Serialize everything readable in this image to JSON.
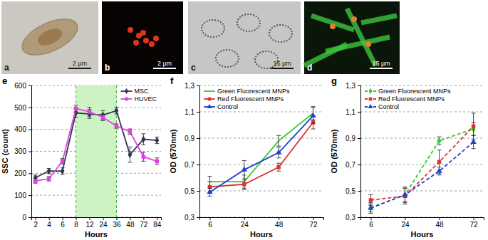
{
  "panels": [
    {
      "label": "a",
      "scale_bar": "2 µm"
    },
    {
      "label": "b",
      "scale_bar": "2 µm"
    },
    {
      "label": "c",
      "scale_bar": "15 µm"
    },
    {
      "label": "d",
      "scale_bar": "15 µm"
    }
  ],
  "chart_data": [
    {
      "label": "e",
      "type": "line",
      "x_label": "Hours",
      "y_label": "SSC (count)",
      "categories": [
        "2",
        "4",
        "6",
        "8",
        "12",
        "24",
        "36",
        "48",
        "72",
        "84"
      ],
      "ylim": [
        0,
        600
      ],
      "yticks": [
        0,
        100,
        200,
        300,
        400,
        500,
        600
      ],
      "grid": true,
      "legend": "upper right",
      "band": [
        "8",
        "36"
      ],
      "series": [
        {
          "name": "MSC",
          "color": "#2f3b55",
          "marker": "diamond",
          "line_style": "solid",
          "values": [
            180,
            210,
            210,
            475,
            470,
            465,
            485,
            285,
            355,
            350
          ],
          "errors": [
            12,
            12,
            15,
            20,
            20,
            20,
            15,
            35,
            25,
            15
          ]
        },
        {
          "name": "HUVEC",
          "color": "#e040e0",
          "marker": "square",
          "line_style": "solid",
          "values": [
            165,
            175,
            255,
            495,
            480,
            455,
            415,
            390,
            275,
            255
          ],
          "errors": [
            10,
            10,
            12,
            15,
            20,
            15,
            10,
            12,
            20,
            15
          ]
        }
      ]
    },
    {
      "label": "f",
      "type": "line",
      "x_label": "Hours",
      "y_label": "OD (570nm)",
      "categories": [
        "6",
        "24",
        "48",
        "72"
      ],
      "ylim": [
        0.3,
        1.3
      ],
      "yticks": [
        {
          "value": 0.3,
          "label": "0,3"
        },
        {
          "value": 0.5,
          "label": "0,5"
        },
        {
          "value": 0.7,
          "label": "0,7"
        },
        {
          "value": 0.9,
          "label": "0,9"
        },
        {
          "value": 1.1,
          "label": "1,1"
        },
        {
          "value": 1.3,
          "label": "1,3"
        }
      ],
      "grid": true,
      "legend": "upper left",
      "series": [
        {
          "name": "Green Fluorescent MNPs",
          "color": "#33cc33",
          "marker": "none",
          "line_style": "solid",
          "values": [
            0.57,
            0.57,
            0.88,
            1.09
          ],
          "errors": [
            0.04,
            0.05,
            0.04,
            0.05
          ]
        },
        {
          "name": "Red Fluorescent MNPs",
          "color": "#e03030",
          "marker": "square",
          "line_style": "solid",
          "values": [
            0.53,
            0.55,
            0.68,
            1.02
          ],
          "errors": [
            0.04,
            0.04,
            0.03,
            0.05
          ]
        },
        {
          "name": "Control",
          "color": "#2040d0",
          "marker": "triangle",
          "line_style": "solid",
          "values": [
            0.49,
            0.66,
            0.79,
            1.07
          ],
          "errors": [
            0.03,
            0.07,
            0.04,
            0.06
          ]
        }
      ]
    },
    {
      "label": "g",
      "type": "line",
      "x_label": "Hours",
      "y_label": "OD (570nm)",
      "categories": [
        "6",
        "24",
        "48",
        "72"
      ],
      "ylim": [
        0.3,
        1.3
      ],
      "yticks": [
        {
          "value": 0.3,
          "label": "0,3"
        },
        {
          "value": 0.5,
          "label": "0,5"
        },
        {
          "value": 0.7,
          "label": "0,7"
        },
        {
          "value": 0.9,
          "label": "0,9"
        },
        {
          "value": 1.1,
          "label": "1,1"
        },
        {
          "value": 1.3,
          "label": "1,3"
        }
      ],
      "grid": true,
      "legend": "upper left",
      "series": [
        {
          "name": "Green Fluorescent MNPs",
          "color": "#33cc33",
          "marker": "diamond",
          "line_style": "dashed",
          "values": [
            0.37,
            0.47,
            0.88,
            0.97
          ],
          "errors": [
            0.03,
            0.05,
            0.03,
            0.05
          ]
        },
        {
          "name": "Red Fluorescent MNPs",
          "color": "#e03030",
          "marker": "square",
          "line_style": "dashed",
          "values": [
            0.43,
            0.46,
            0.72,
            0.99
          ],
          "errors": [
            0.04,
            0.06,
            0.09,
            0.1
          ]
        },
        {
          "name": "Control",
          "color": "#2040d0",
          "marker": "triangle",
          "line_style": "dashed",
          "values": [
            0.37,
            0.47,
            0.65,
            0.87
          ],
          "errors": [
            0.04,
            0.06,
            0.03,
            0.05
          ]
        }
      ]
    }
  ]
}
